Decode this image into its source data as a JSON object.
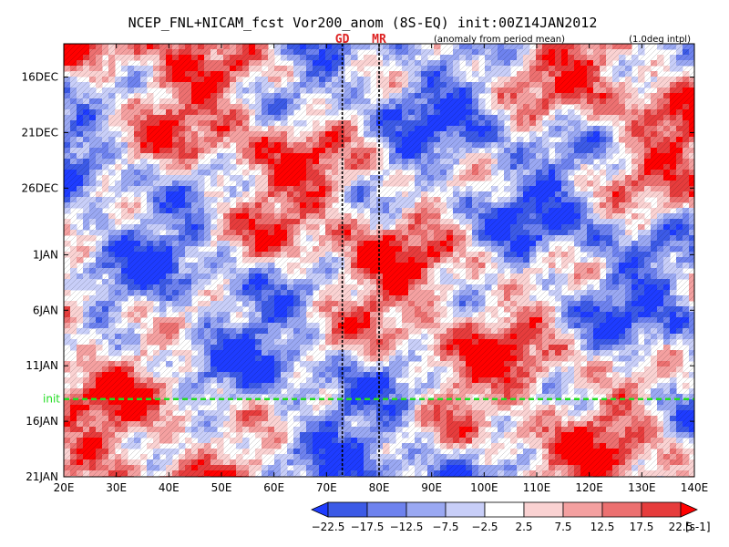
{
  "chart_data": {
    "type": "heatmap",
    "title": "NCEP_FNL+NICAM_fcst Vor200_anom (8S-EQ) init:00Z14JAN2012",
    "subtitle": "(anomaly from period mean)",
    "interp_note": "(1.0deg intpl)",
    "x_axis": {
      "range": [
        20,
        140
      ],
      "ticks": [
        20,
        30,
        40,
        50,
        60,
        70,
        80,
        90,
        100,
        110,
        120,
        130,
        140
      ],
      "tick_labels": [
        "20E",
        "30E",
        "40E",
        "50E",
        "60E",
        "70E",
        "80E",
        "90E",
        "100E",
        "110E",
        "120E",
        "130E",
        "140E"
      ]
    },
    "y_axis": {
      "direction": "time increasing downward",
      "range_days": [
        "2011-12-13",
        "2012-01-21"
      ],
      "ticks": [
        "2011-12-16",
        "2011-12-21",
        "2011-12-26",
        "2012-01-01",
        "2012-01-06",
        "2012-01-11",
        "2012-01-16",
        "2012-01-21"
      ],
      "tick_labels": [
        "16DEC",
        "21DEC",
        "26DEC",
        "1JAN",
        "6JAN",
        "11JAN",
        "16JAN",
        "21JAN"
      ]
    },
    "init_line": {
      "label": "init",
      "date": "2012-01-14",
      "color": "#22dd22"
    },
    "vertical_markers": [
      {
        "label": "GD",
        "lon": 73,
        "color": "#dd2222"
      },
      {
        "label": "MR",
        "lon": 80,
        "color": "#dd2222"
      }
    ],
    "colorbar": {
      "unit": "[s-1]",
      "tick_labels": [
        "−22.5",
        "−17.5",
        "−12.5",
        "−7.5",
        "−2.5",
        "2.5",
        "7.5",
        "12.5",
        "17.5",
        "22.5"
      ],
      "levels": [
        -22.5,
        -17.5,
        -12.5,
        -7.5,
        -2.5,
        2.5,
        7.5,
        12.5,
        17.5,
        22.5
      ],
      "colors": [
        "#1e3cff",
        "#3c5ae6",
        "#6e82ee",
        "#9aa8f2",
        "#c8cef8",
        "#ffffff",
        "#fad2d2",
        "#f4a0a0",
        "#ec7070",
        "#e63c3c",
        "#ff0000"
      ]
    },
    "grid": false,
    "legend": "none"
  }
}
